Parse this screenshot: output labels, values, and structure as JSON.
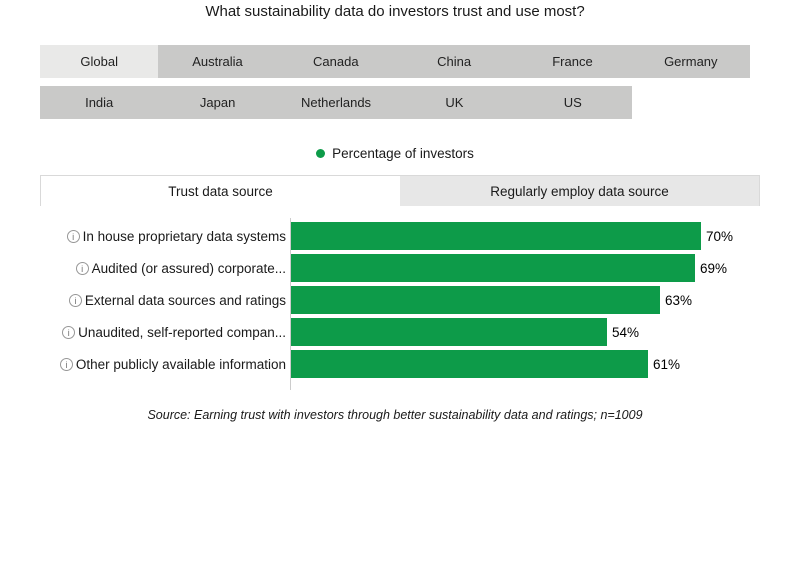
{
  "title": "What sustainability data do investors trust and use most?",
  "country_tabs": {
    "row1": [
      {
        "label": "Global",
        "selected": true
      },
      {
        "label": "Australia",
        "selected": false
      },
      {
        "label": "Canada",
        "selected": false
      },
      {
        "label": "China",
        "selected": false
      },
      {
        "label": "France",
        "selected": false
      },
      {
        "label": "Germany",
        "selected": false
      }
    ],
    "row2": [
      {
        "label": "India",
        "selected": false
      },
      {
        "label": "Japan",
        "selected": false
      },
      {
        "label": "Netherlands",
        "selected": false
      },
      {
        "label": "UK",
        "selected": false
      },
      {
        "label": "US",
        "selected": false
      }
    ]
  },
  "legend": {
    "label": "Percentage of investors",
    "dot_color": "#0d9b49"
  },
  "view_tabs": [
    {
      "label": "Trust data source",
      "selected": true
    },
    {
      "label": "Regularly employ data source",
      "selected": false
    }
  ],
  "chart_data": {
    "type": "bar",
    "orientation": "horizontal",
    "title": "What sustainability data do investors trust and use most?",
    "series_name": "Percentage of investors",
    "categories": [
      "In house proprietary data systems",
      "Audited (or assured) corporate...",
      "External data sources and ratings",
      "Unaudited, self-reported compan...",
      "Other publicly available information"
    ],
    "values": [
      70,
      69,
      63,
      54,
      61
    ],
    "value_labels": [
      "70%",
      "69%",
      "63%",
      "54%",
      "61%"
    ],
    "bar_color": "#0d9b49",
    "info_icon_glyph": "i",
    "axis_visible": false,
    "xlim": [
      0,
      80
    ],
    "legend_position": "top-center",
    "grid": false
  },
  "source_note": "Source: Earning trust with investors through better sustainability data and ratings; n=1009",
  "colors": {
    "accent_green": "#0d9b49",
    "country_tab_selected_bg": "#e9e9e8",
    "country_tab_unselected_bg": "#c9c9c8",
    "view_tab_unselected_bg": "#e7e7e7",
    "axis_line": "#cccccc",
    "text": "#1a1a1a"
  }
}
